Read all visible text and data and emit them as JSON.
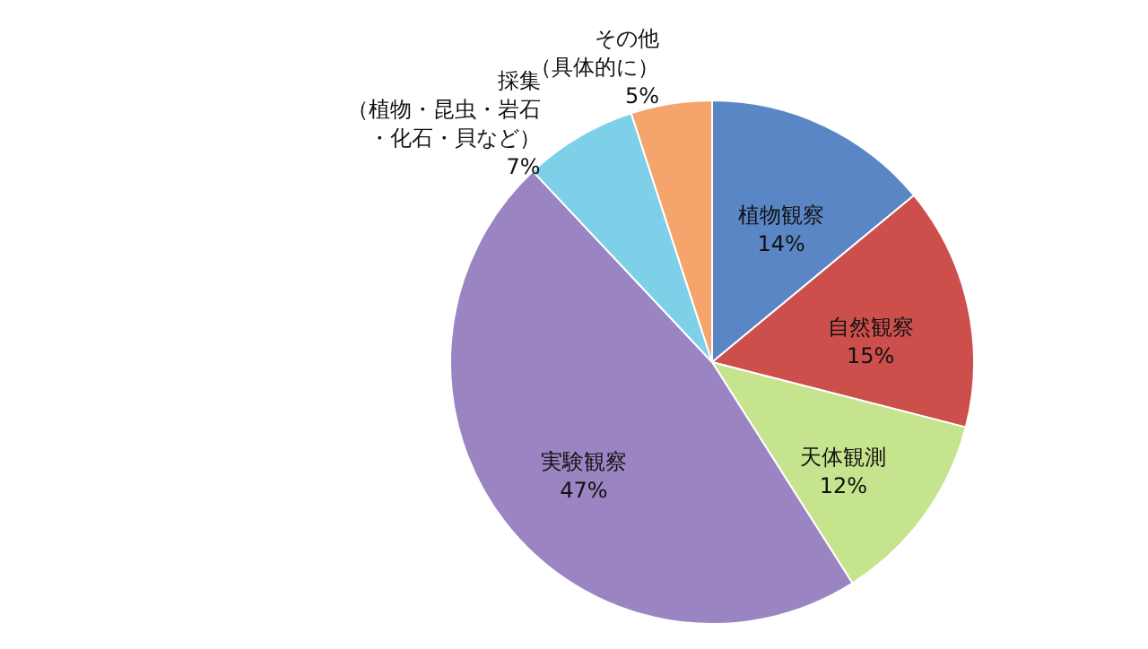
{
  "chart_data": {
    "type": "pie",
    "categories": [
      "植物観察",
      "自然観察",
      "天体観測",
      "実験観察",
      "採集（植物・昆虫・岩石・化石・貝など）",
      "その他（具体的に）"
    ],
    "values": [
      14,
      15,
      12,
      47,
      7,
      5
    ],
    "colors": [
      "#5b86c6",
      "#cc4f4c",
      "#c6e38e",
      "#9a85c2",
      "#7ecfe8",
      "#f5a46c"
    ],
    "value_labels": [
      "14%",
      "15%",
      "12%",
      "47%",
      "7%",
      "5%"
    ]
  }
}
